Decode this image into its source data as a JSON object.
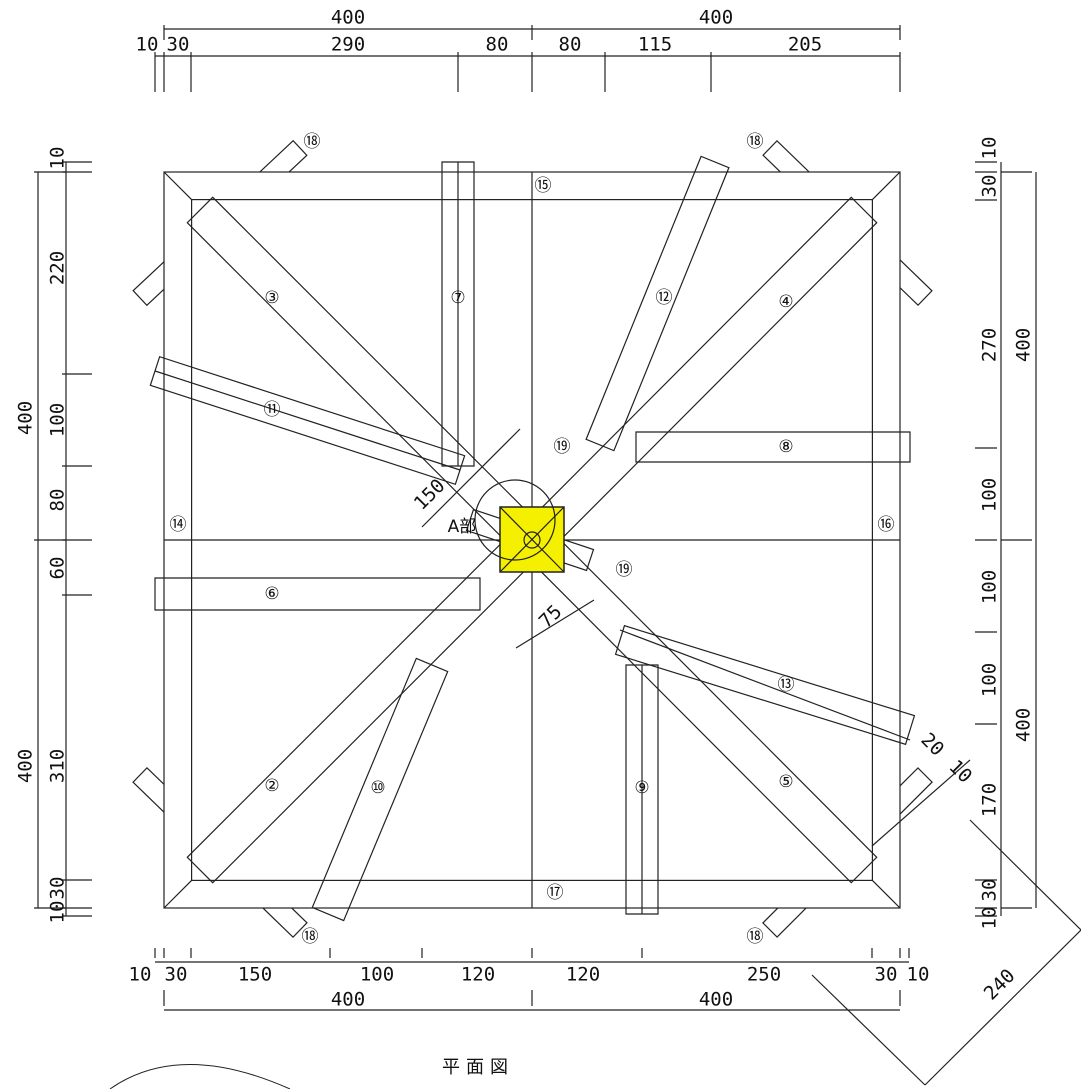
{
  "title": "平面図",
  "dimensions": {
    "top_total": [
      400,
      400
    ],
    "top": [
      10,
      30,
      290,
      80,
      80,
      115,
      205
    ],
    "left": [
      10,
      220,
      100,
      80,
      60,
      310,
      30,
      10
    ],
    "left_total": [
      400,
      400
    ],
    "right": [
      10,
      30,
      270,
      100,
      100,
      100,
      170,
      30,
      10
    ],
    "right_total": [
      400,
      400
    ],
    "bottom": [
      10,
      30,
      150,
      100,
      120,
      120,
      250,
      30,
      10
    ],
    "bottom_total": [
      400,
      400
    ],
    "detail": [
      150,
      75,
      20,
      10,
      240
    ]
  },
  "detail_label": "A部",
  "members": [
    "②",
    "③",
    "④",
    "⑤",
    "⑥",
    "⑦",
    "⑧",
    "⑨",
    "⑩",
    "⑪",
    "⑫",
    "⑬",
    "⑭",
    "⑮",
    "⑯",
    "⑰",
    "⑱",
    "⑱",
    "⑱",
    "⑱",
    "⑲",
    "⑲"
  ]
}
